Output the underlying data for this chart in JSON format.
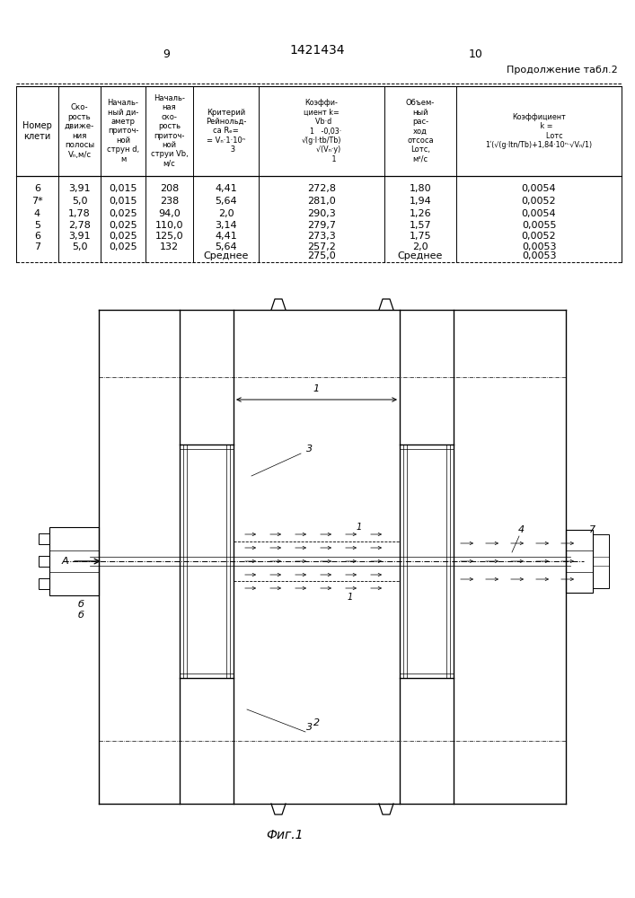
{
  "page_number_left": "9",
  "page_number_right": "10",
  "patent_number": "1421434",
  "continuation_text": "Продолжение табл.2",
  "data_rows": [
    [
      "6",
      "3,91",
      "0,015",
      "208",
      "4,41",
      "272,8",
      "1,80",
      "0,0054"
    ],
    [
      "7*",
      "5,0",
      "0,015",
      "238",
      "5,64",
      "281,0",
      "1,94",
      "0,0052"
    ],
    [
      "4",
      "1,78",
      "0,025",
      "94,0",
      "2,0",
      "290,3",
      "1,26",
      "0,0054"
    ],
    [
      "5",
      "2,78",
      "0,025",
      "110,0",
      "3,14",
      "279,7",
      "1,57",
      "0,0055"
    ],
    [
      "6",
      "3,91",
      "0,025",
      "125,0",
      "4,41",
      "273,3",
      "1,75",
      "0,0052"
    ],
    [
      "7",
      "5,0",
      "0,025",
      "132",
      "5,64",
      "257,2",
      "2,0",
      "0,0053"
    ]
  ],
  "average_row": [
    "",
    "",
    "",
    "",
    "Среднее",
    "275,0",
    "Среднее",
    "0,0053"
  ],
  "fig_caption": "Фиг.1"
}
